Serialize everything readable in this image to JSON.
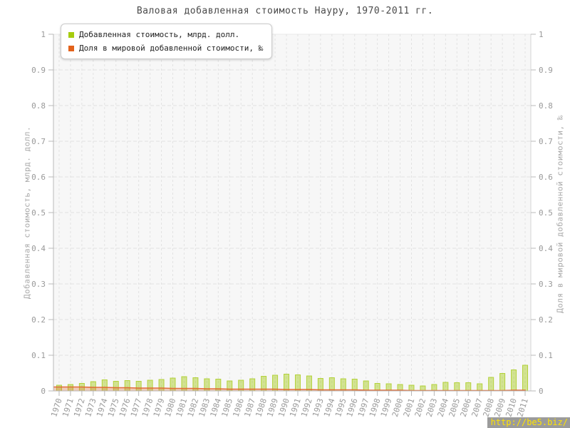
{
  "page": {
    "title": "Валовая добавленная стоимость Науру, 1970-2011 гг."
  },
  "legend": {
    "items": [
      {
        "label": "Добавленная стоимость, млрд. долл.",
        "color": "#a6cc0e"
      },
      {
        "label": "Доля в мировой добавленной стоимости, ‰",
        "color": "#e2621b"
      }
    ]
  },
  "axes": {
    "left": {
      "title": "Добавленная стоимость, млрд. долл."
    },
    "right": {
      "title": "Доля в мировой добавленной стоимости, ‰"
    }
  },
  "watermark": {
    "text": "http://be5.biz/",
    "bg": "#9b9b9b",
    "color": "#ffe400"
  },
  "chart_data": {
    "type": "bar",
    "title": "Валовая добавленная стоимость Науру, 1970-2011 гг.",
    "categories": [
      "1970",
      "1971",
      "1972",
      "1973",
      "1974",
      "1975",
      "1976",
      "1977",
      "1978",
      "1979",
      "1980",
      "1981",
      "1982",
      "1983",
      "1984",
      "1985",
      "1986",
      "1987",
      "1988",
      "1989",
      "1990",
      "1991",
      "1992",
      "1993",
      "1994",
      "1995",
      "1996",
      "1997",
      "1998",
      "1999",
      "2000",
      "2001",
      "2002",
      "2003",
      "2004",
      "2005",
      "2006",
      "2007",
      "2008",
      "2009",
      "2010",
      "2011"
    ],
    "series": [
      {
        "name": "Добавленная стоимость, млрд. долл.",
        "type": "bar",
        "color": "#aacc22",
        "values": [
          0.016,
          0.018,
          0.021,
          0.026,
          0.031,
          0.027,
          0.029,
          0.027,
          0.03,
          0.032,
          0.036,
          0.04,
          0.037,
          0.034,
          0.033,
          0.028,
          0.03,
          0.034,
          0.041,
          0.044,
          0.047,
          0.045,
          0.042,
          0.035,
          0.037,
          0.034,
          0.033,
          0.028,
          0.021,
          0.02,
          0.018,
          0.016,
          0.014,
          0.018,
          0.024,
          0.023,
          0.023,
          0.02,
          0.038,
          0.049,
          0.059,
          0.072
        ]
      },
      {
        "name": "Доля в мировой добавленной стоимости, ‰",
        "type": "area",
        "color": "#e0622b",
        "values": [
          0.011,
          0.011,
          0.011,
          0.01,
          0.01,
          0.009,
          0.009,
          0.008,
          0.008,
          0.008,
          0.007,
          0.007,
          0.007,
          0.006,
          0.006,
          0.005,
          0.005,
          0.005,
          0.005,
          0.005,
          0.004,
          0.004,
          0.004,
          0.003,
          0.003,
          0.003,
          0.003,
          0.002,
          0.002,
          0.002,
          0.002,
          0.001,
          0.001,
          0.001,
          0.001,
          0.001,
          0.001,
          0.001,
          0.001,
          0.001,
          0.002,
          0.002
        ]
      }
    ],
    "xlabel": "",
    "ylabel_left": "Добавленная стоимость, млрд. долл.",
    "ylabel_right": "Доля в мировой добавленной стоимости, ‰",
    "ylim": [
      0,
      1
    ],
    "y_ticks": [
      0,
      0.1,
      0.2,
      0.3,
      0.4,
      0.5,
      0.6,
      0.7,
      0.8,
      0.9,
      1
    ],
    "grid": true,
    "legend_position": "top-left",
    "colors": {
      "plot_bg": "#f7f7f7",
      "grid": "#e2e2e2",
      "axis": "#b8b8b8",
      "tick_label": "#999999",
      "top_border": "#e9e9e9"
    }
  }
}
